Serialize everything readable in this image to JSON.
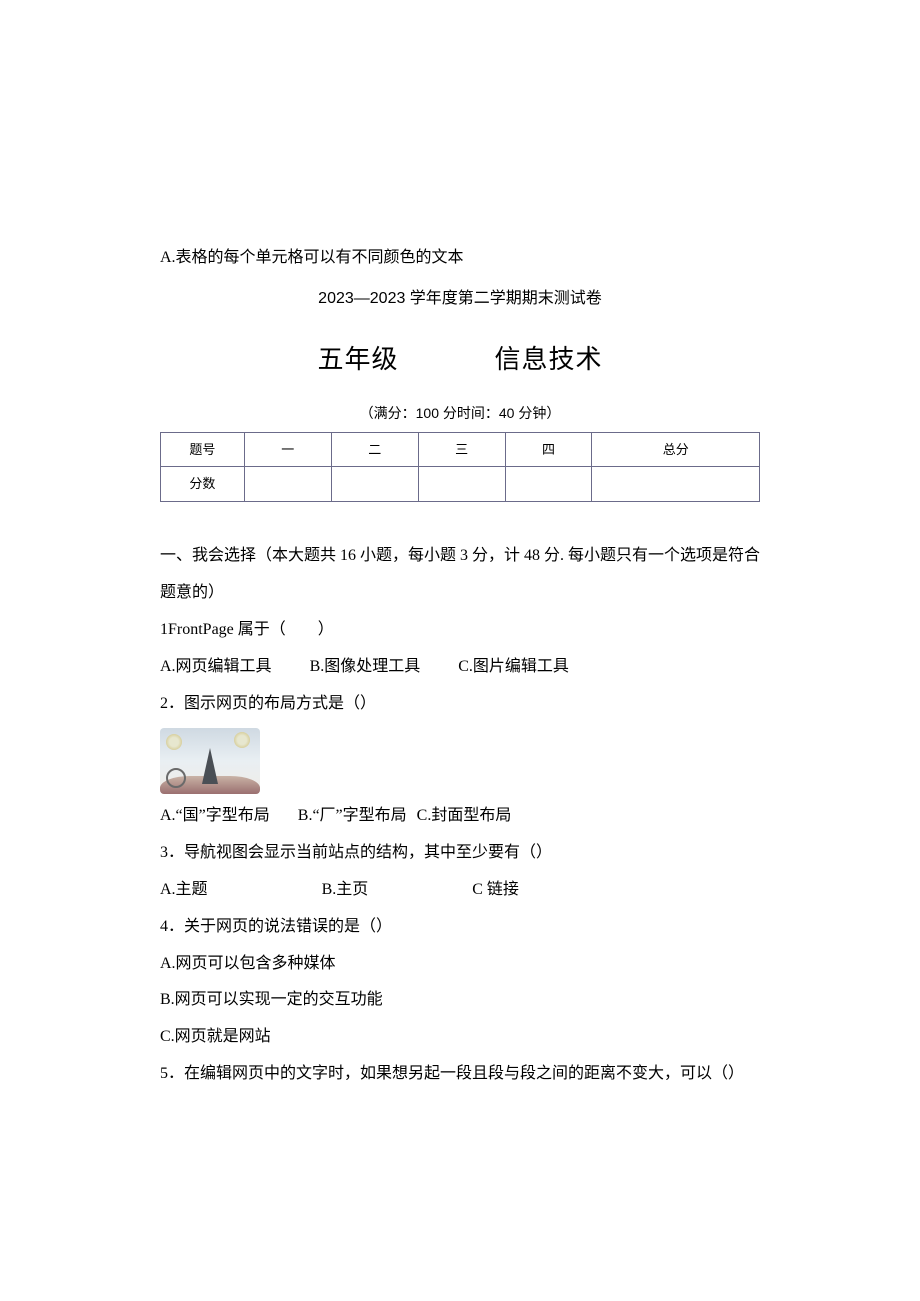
{
  "header": {
    "stray_line": "A.表格的每个单元格可以有不同颜色的文本",
    "exam_title": "2023—2023 学年度第二学期期末测试卷",
    "grade": "五年级",
    "subject": "信息技术",
    "meta": "（满分：100 分时间：40 分钟）"
  },
  "score_table": {
    "row1": [
      "题号",
      "一",
      "二",
      "三",
      "四",
      "总分"
    ],
    "row2_label": "分数"
  },
  "section1": {
    "heading": "一、我会选择（本大题共 16 小题，每小题 3 分，计 48 分. 每小题只有一个选项是符合题意的）"
  },
  "q1": {
    "stem": "1FrontPage 属于（　　）",
    "A": "A.网页编辑工具",
    "B": "B.图像处理工具",
    "C": "C.图片编辑工具"
  },
  "q2": {
    "stem": "2．图示网页的布局方式是（）",
    "A": "A.“国”字型布局",
    "B": "B.“厂”字型布局",
    "C": "C.封面型布局"
  },
  "q3": {
    "stem": "3．导航视图会显示当前站点的结构，其中至少要有（）",
    "A": "A.主题",
    "B": "B.主页",
    "C": "C 链接"
  },
  "q4": {
    "stem": "4．关于网页的说法错误的是（）",
    "A": "A.网页可以包含多种媒体",
    "B": "B.网页可以实现一定的交互功能",
    "C": "C.网页就是网站"
  },
  "q5": {
    "stem": "5．在编辑网页中的文字时，如果想另起一段且段与段之间的距离不变大，可以（）"
  }
}
